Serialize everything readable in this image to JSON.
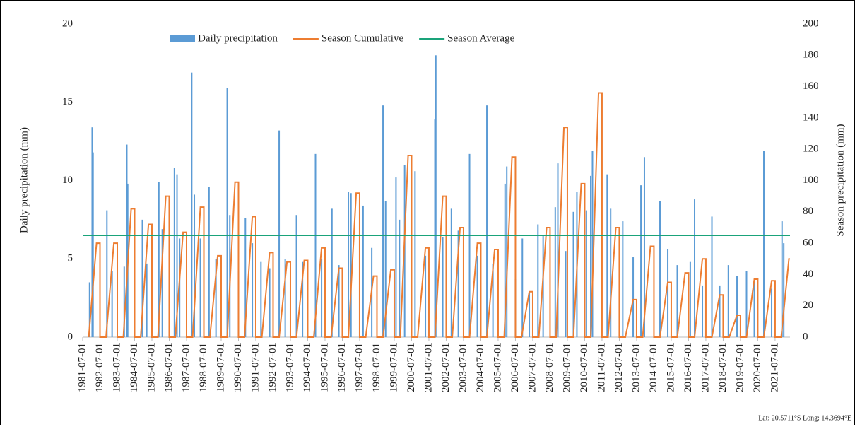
{
  "chart_data": {
    "type": "combo",
    "ylabel": "Daily precipitation (mm)",
    "y2label": "Season precipitation (mm)",
    "footnote": "Lat: 20.5711°S Long: 14.3694°E",
    "xlim": [
      1981.5,
      2022.36
    ],
    "xticks": [
      {
        "value": 1981.5,
        "label": "1981-07-01"
      },
      {
        "value": 1982.5,
        "label": "1982-07-01"
      },
      {
        "value": 1983.5,
        "label": "1983-07-01"
      },
      {
        "value": 1984.5,
        "label": "1984-07-01"
      },
      {
        "value": 1985.5,
        "label": "1985-07-01"
      },
      {
        "value": 1986.5,
        "label": "1986-07-01"
      },
      {
        "value": 1987.5,
        "label": "1987-07-01"
      },
      {
        "value": 1988.5,
        "label": "1988-07-01"
      },
      {
        "value": 1989.5,
        "label": "1989-07-01"
      },
      {
        "value": 1990.5,
        "label": "1990-07-01"
      },
      {
        "value": 1991.5,
        "label": "1991-07-01"
      },
      {
        "value": 1992.5,
        "label": "1992-07-01"
      },
      {
        "value": 1993.5,
        "label": "1993-07-01"
      },
      {
        "value": 1994.5,
        "label": "1994-07-01"
      },
      {
        "value": 1995.5,
        "label": "1995-07-01"
      },
      {
        "value": 1996.5,
        "label": "1996-07-01"
      },
      {
        "value": 1997.5,
        "label": "1997-07-01"
      },
      {
        "value": 1998.5,
        "label": "1998-07-01"
      },
      {
        "value": 1999.5,
        "label": "1999-07-01"
      },
      {
        "value": 2000.5,
        "label": "2000-07-01"
      },
      {
        "value": 2001.5,
        "label": "2001-07-01"
      },
      {
        "value": 2002.5,
        "label": "2002-07-01"
      },
      {
        "value": 2003.5,
        "label": "2003-07-01"
      },
      {
        "value": 2004.5,
        "label": "2004-07-01"
      },
      {
        "value": 2005.5,
        "label": "2005-07-01"
      },
      {
        "value": 2006.5,
        "label": "2006-07-01"
      },
      {
        "value": 2007.5,
        "label": "2007-07-01"
      },
      {
        "value": 2008.5,
        "label": "2008-07-01"
      },
      {
        "value": 2009.5,
        "label": "2009-07-01"
      },
      {
        "value": 2010.5,
        "label": "2010-07-01"
      },
      {
        "value": 2011.5,
        "label": "2011-07-01"
      },
      {
        "value": 2012.5,
        "label": "2012-07-01"
      },
      {
        "value": 2013.5,
        "label": "2013-07-01"
      },
      {
        "value": 2014.5,
        "label": "2014-07-01"
      },
      {
        "value": 2015.5,
        "label": "2015-07-01"
      },
      {
        "value": 2016.5,
        "label": "2016-07-01"
      },
      {
        "value": 2017.5,
        "label": "2017-07-01"
      },
      {
        "value": 2018.5,
        "label": "2018-07-01"
      },
      {
        "value": 2019.5,
        "label": "2019-07-01"
      },
      {
        "value": 2020.5,
        "label": "2020-07-01"
      },
      {
        "value": 2021.5,
        "label": "2021-07-01"
      }
    ],
    "ylim": [
      0,
      20
    ],
    "yticks": [
      0,
      5,
      10,
      15,
      20
    ],
    "y2lim": [
      0,
      200
    ],
    "y2ticks": [
      0,
      20,
      40,
      60,
      80,
      100,
      120,
      140,
      160,
      180,
      200
    ],
    "series": [
      {
        "name": "Daily precipitation",
        "type": "bar",
        "axis": "y",
        "color": "#5b9bd5",
        "x": [
          1981.9,
          1982.05,
          1982.1,
          1982.9,
          1983.2,
          1983.9,
          1984.05,
          1984.1,
          1984.95,
          1985.2,
          1985.9,
          1986.1,
          1986.8,
          1986.95,
          1987.1,
          1987.8,
          1987.95,
          1988.3,
          1988.8,
          1989.2,
          1989.85,
          1990.0,
          1990.5,
          1990.9,
          1991.3,
          1991.8,
          1992.3,
          1992.85,
          1993.2,
          1993.85,
          1994.2,
          1994.95,
          1995.3,
          1995.9,
          1996.3,
          1996.85,
          1997.0,
          1997.5,
          1997.7,
          1998.2,
          1998.85,
          1999.0,
          1999.6,
          1999.8,
          2000.1,
          2000.7,
          2001.3,
          2001.85,
          2001.9,
          2002.3,
          2002.8,
          2003.2,
          2003.85,
          2004.3,
          2004.85,
          2005.2,
          2005.9,
          2006.0,
          2006.5,
          2006.9,
          2007.3,
          2007.8,
          2008.1,
          2008.8,
          2008.95,
          2009.4,
          2009.85,
          2010.05,
          2010.6,
          2010.85,
          2010.95,
          2011.8,
          2012.0,
          2012.7,
          2013.3,
          2013.75,
          2013.95,
          2014.85,
          2015.3,
          2015.85,
          2016.6,
          2016.85,
          2017.3,
          2017.85,
          2018.3,
          2018.8,
          2019.3,
          2019.85,
          2020.3,
          2020.85,
          2021.3,
          2021.9,
          2022.0
        ],
        "values": [
          3.5,
          13.4,
          11.8,
          8.1,
          4.2,
          4.5,
          12.3,
          9.8,
          7.5,
          4.7,
          9.9,
          6.9,
          10.8,
          10.4,
          6.3,
          16.9,
          9.1,
          6.3,
          9.6,
          5.0,
          15.9,
          7.8,
          4.2,
          7.6,
          6.0,
          4.8,
          4.4,
          13.2,
          5.0,
          7.8,
          4.8,
          11.7,
          5.0,
          8.2,
          4.6,
          9.3,
          9.2,
          8.8,
          8.4,
          5.7,
          14.8,
          8.7,
          10.2,
          7.5,
          11.0,
          10.6,
          5.2,
          13.9,
          18.0,
          6.4,
          8.2,
          6.8,
          11.7,
          5.2,
          14.8,
          4.7,
          9.8,
          10.9,
          3.7,
          6.3,
          2.9,
          7.2,
          6.5,
          8.3,
          11.1,
          5.5,
          8.0,
          9.3,
          8.1,
          10.3,
          11.9,
          10.4,
          8.2,
          7.4,
          5.1,
          9.7,
          11.5,
          8.7,
          5.6,
          4.6,
          4.8,
          8.8,
          3.3,
          7.7,
          3.3,
          4.6,
          3.9,
          4.2,
          3.6,
          11.9,
          3.1,
          7.4,
          6.0
        ]
      },
      {
        "name": "Season Cumulative",
        "type": "line",
        "axis": "y2",
        "color": "#ed7d31",
        "x": [
          1981.85,
          1982.3,
          1982.5,
          1982.5,
          1982.85,
          1983.3,
          1983.5,
          1983.5,
          1983.85,
          1984.3,
          1984.5,
          1984.5,
          1984.85,
          1985.3,
          1985.5,
          1985.5,
          1985.85,
          1986.3,
          1986.5,
          1986.5,
          1986.85,
          1987.3,
          1987.5,
          1987.5,
          1987.85,
          1988.3,
          1988.5,
          1988.5,
          1988.85,
          1989.3,
          1989.5,
          1989.5,
          1989.85,
          1990.3,
          1990.5,
          1990.5,
          1990.85,
          1991.3,
          1991.5,
          1991.5,
          1991.85,
          1992.3,
          1992.5,
          1992.5,
          1992.85,
          1993.3,
          1993.5,
          1993.5,
          1993.85,
          1994.3,
          1994.5,
          1994.5,
          1994.85,
          1995.3,
          1995.5,
          1995.5,
          1995.85,
          1996.3,
          1996.5,
          1996.5,
          1996.85,
          1997.3,
          1997.5,
          1997.5,
          1997.85,
          1998.3,
          1998.5,
          1998.5,
          1998.85,
          1999.3,
          1999.5,
          1999.5,
          1999.85,
          2000.3,
          2000.5,
          2000.5,
          2000.85,
          2001.3,
          2001.5,
          2001.5,
          2001.85,
          2002.3,
          2002.5,
          2002.5,
          2002.85,
          2003.3,
          2003.5,
          2003.5,
          2003.85,
          2004.3,
          2004.5,
          2004.5,
          2004.85,
          2005.3,
          2005.5,
          2005.5,
          2005.85,
          2006.3,
          2006.5,
          2006.5,
          2006.85,
          2007.3,
          2007.5,
          2007.5,
          2007.85,
          2008.3,
          2008.5,
          2008.5,
          2008.85,
          2009.3,
          2009.5,
          2009.5,
          2009.85,
          2010.3,
          2010.5,
          2010.5,
          2010.85,
          2011.3,
          2011.5,
          2011.5,
          2011.85,
          2012.3,
          2012.5,
          2012.5,
          2012.85,
          2013.3,
          2013.5,
          2013.5,
          2013.85,
          2014.3,
          2014.5,
          2014.5,
          2014.85,
          2015.3,
          2015.5,
          2015.5,
          2015.85,
          2016.3,
          2016.5,
          2016.5,
          2016.85,
          2017.3,
          2017.5,
          2017.5,
          2017.85,
          2018.3,
          2018.5,
          2018.5,
          2018.85,
          2019.3,
          2019.5,
          2019.5,
          2019.85,
          2020.3,
          2020.5,
          2020.5,
          2020.85,
          2021.3,
          2021.5,
          2021.5,
          2021.85,
          2022.3,
          2022.35
        ],
        "values": [
          0,
          60,
          60,
          0,
          0,
          60,
          60,
          0,
          0,
          82,
          82,
          0,
          0,
          72,
          72,
          0,
          0,
          90,
          90,
          0,
          0,
          67,
          67,
          0,
          0,
          83,
          83,
          0,
          0,
          52,
          52,
          0,
          0,
          99,
          99,
          0,
          0,
          77,
          77,
          0,
          0,
          54,
          54,
          0,
          0,
          48,
          48,
          0,
          0,
          49,
          49,
          0,
          0,
          57,
          57,
          0,
          0,
          44,
          44,
          0,
          0,
          92,
          92,
          0,
          0,
          39,
          39,
          0,
          0,
          43,
          43,
          0,
          0,
          116,
          116,
          0,
          0,
          57,
          57,
          0,
          0,
          90,
          90,
          0,
          0,
          70,
          70,
          0,
          0,
          60,
          60,
          0,
          0,
          56,
          56,
          0,
          0,
          115,
          115,
          0,
          0,
          29,
          29,
          0,
          0,
          70,
          70,
          0,
          0,
          134,
          134,
          0,
          0,
          98,
          98,
          0,
          0,
          156,
          156,
          0,
          0,
          70,
          70,
          0,
          0,
          24,
          24,
          0,
          0,
          58,
          58,
          0,
          0,
          35,
          35,
          0,
          0,
          41,
          41,
          0,
          0,
          50,
          50,
          0,
          0,
          27,
          27,
          0,
          0,
          14,
          14,
          0,
          0,
          37,
          37,
          0,
          0,
          36,
          36,
          0,
          0,
          50,
          50
        ]
      },
      {
        "name": "Season Average",
        "type": "hline",
        "axis": "y2",
        "color": "#1aa37a",
        "value": 65
      }
    ]
  }
}
